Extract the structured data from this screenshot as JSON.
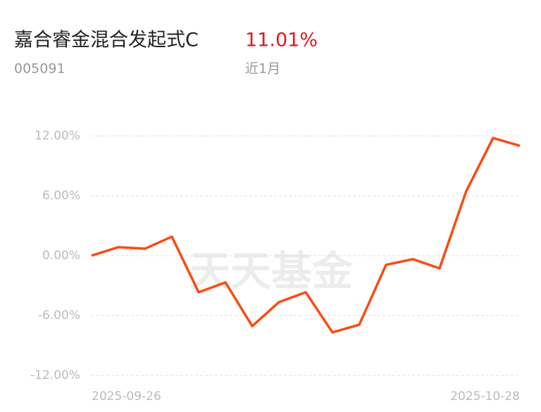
{
  "chart_data": {
    "type": "line",
    "title": "嘉合睿金混合发起式C",
    "return": "11.01%",
    "code": "005091",
    "period": "近1月",
    "watermark": "天天基金",
    "categories": [
      "2025-09-26",
      null,
      null,
      null,
      null,
      null,
      null,
      null,
      null,
      null,
      null,
      null,
      null,
      null,
      null,
      null,
      "2025-10-28"
    ],
    "series": [
      {
        "color": "#fa4b12",
        "values": [
          0,
          0.85,
          0.7,
          1.9,
          -3.67,
          -2.68,
          -7.06,
          -4.66,
          -3.67,
          -7.69,
          -6.92,
          -0.92,
          -0.35,
          -1.27,
          6.49,
          11.79,
          11.01
        ]
      }
    ],
    "ylim": [
      -12,
      12
    ],
    "yticks": [
      {
        "value": 12,
        "label": "12.00%"
      },
      {
        "value": 6,
        "label": "6.00%"
      },
      {
        "value": 0,
        "label": "0.00%"
      },
      {
        "value": -6,
        "label": "-6.00%"
      },
      {
        "value": -12,
        "label": "-12.00%"
      }
    ],
    "grid": true
  }
}
